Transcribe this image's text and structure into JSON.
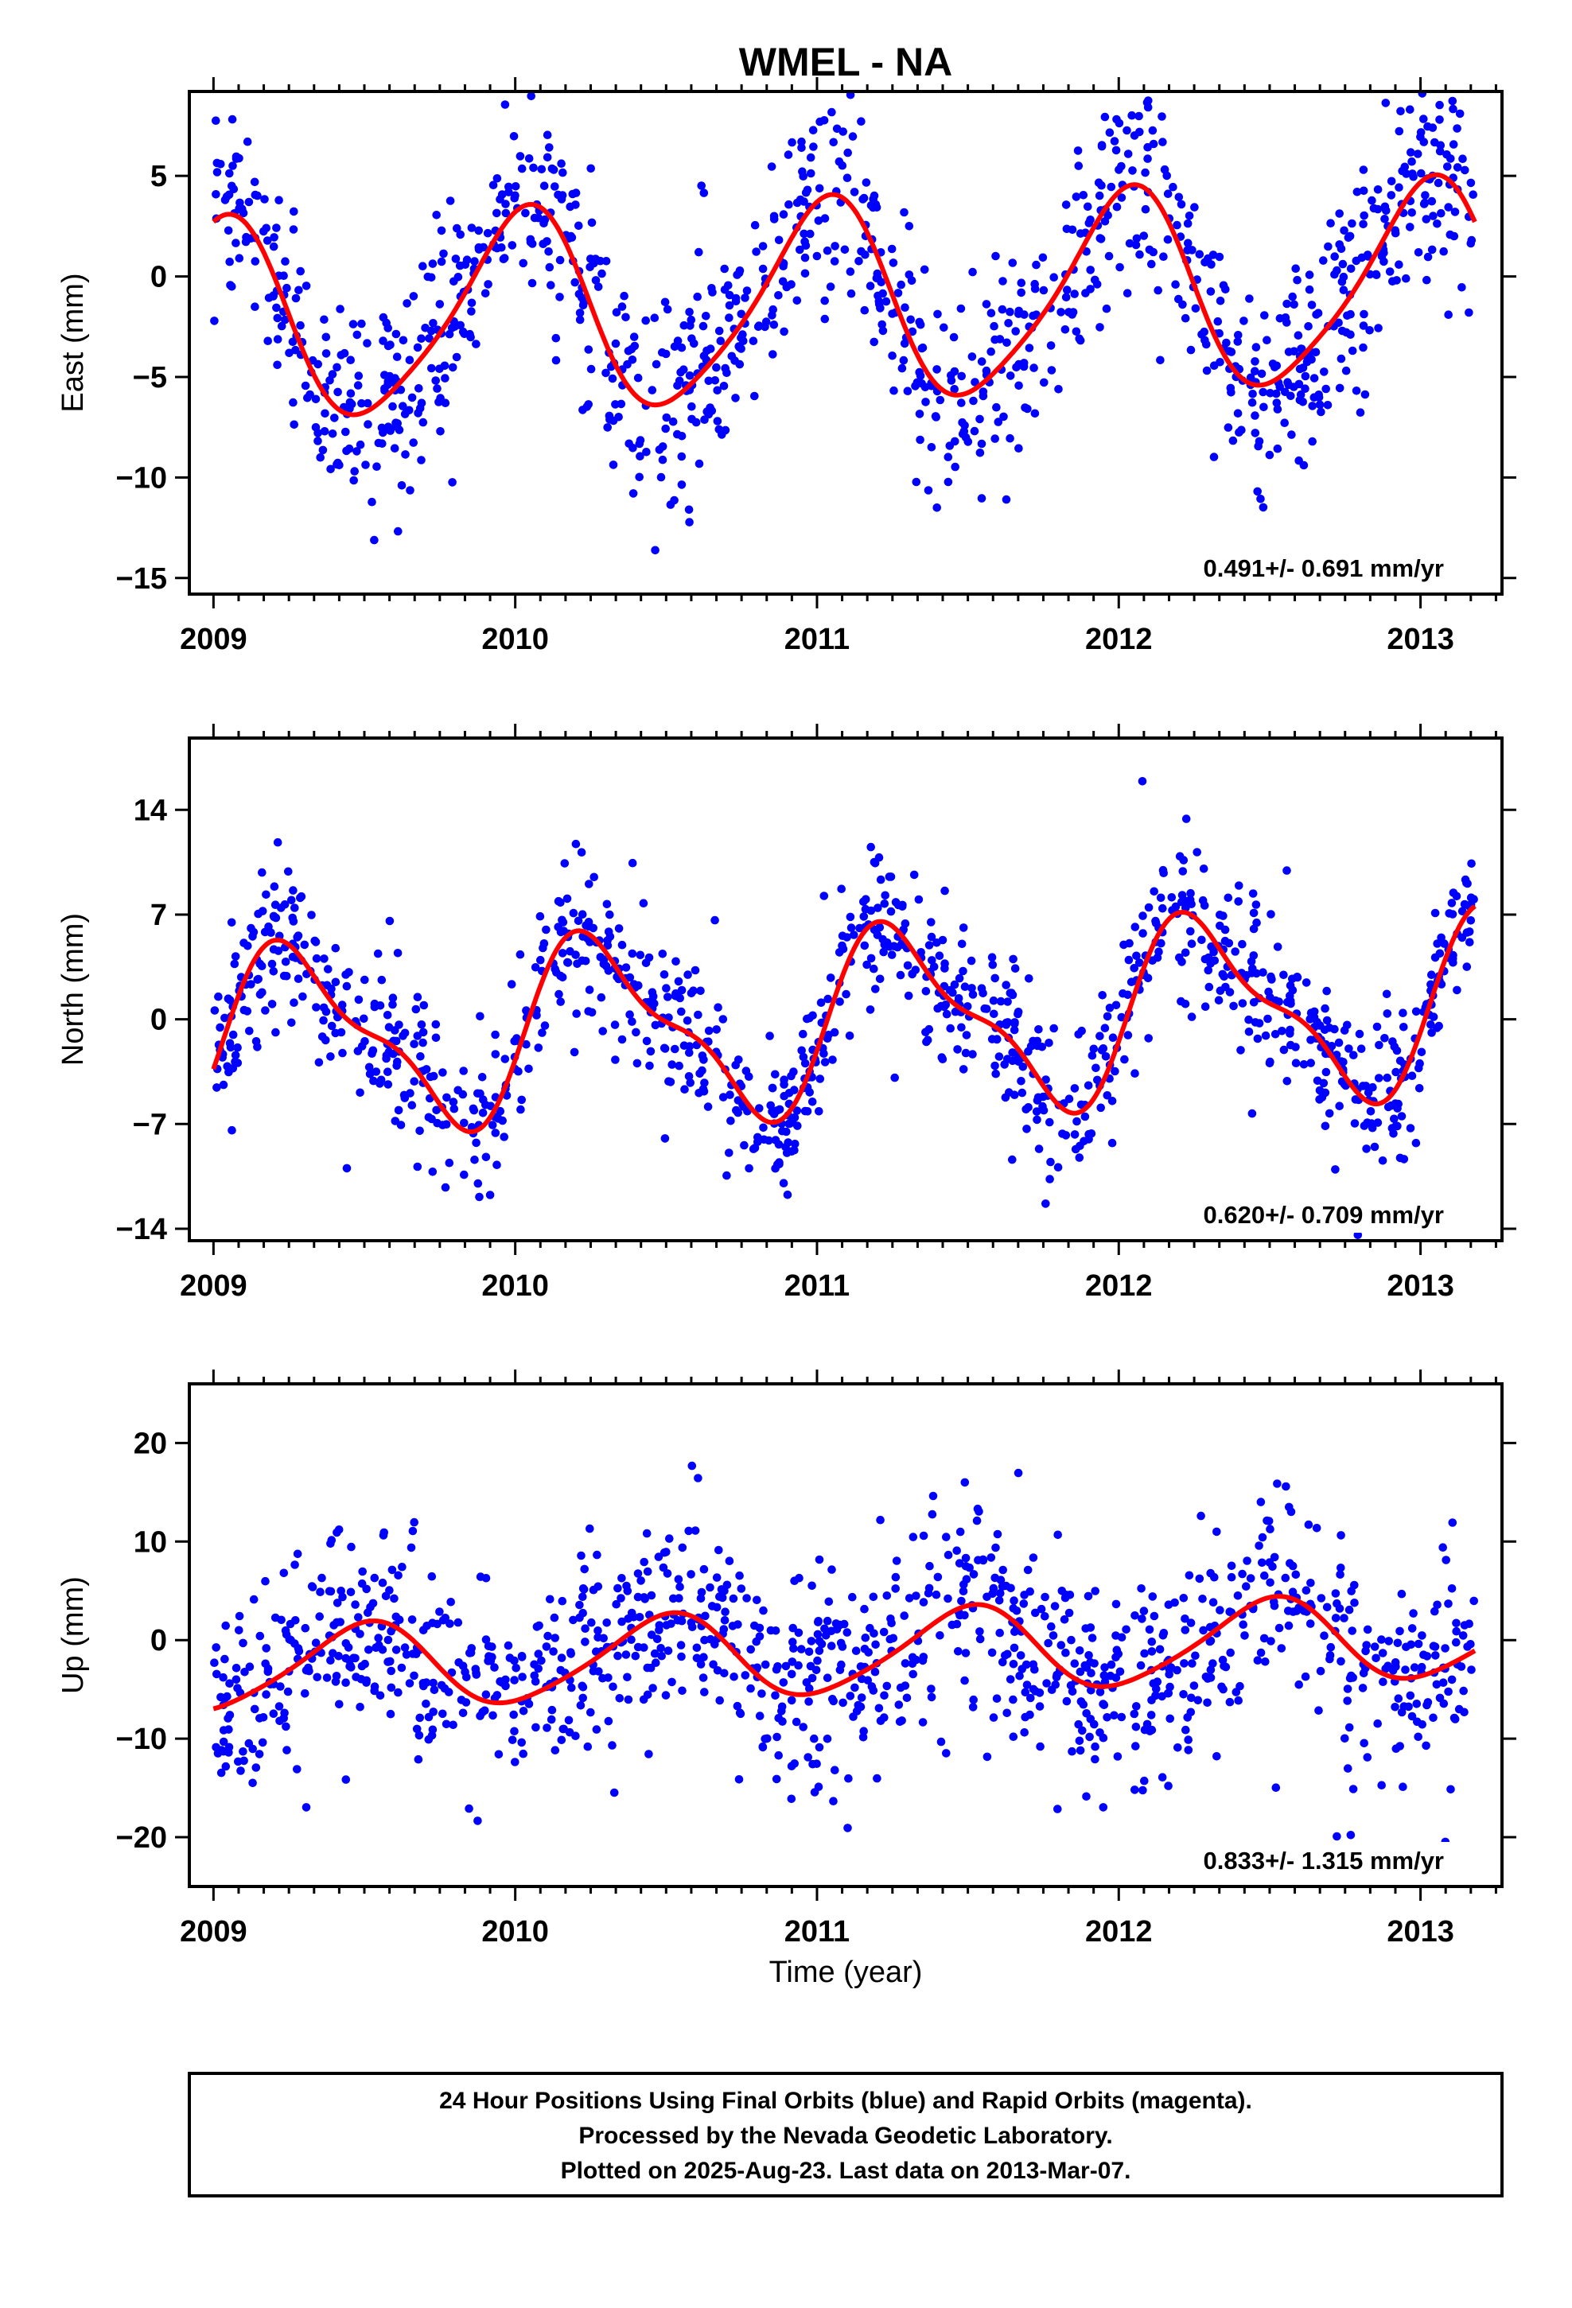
{
  "title": "WMEL - NA",
  "xlabel": "Time (year)",
  "x_tick_labels": [
    "2009",
    "2010",
    "2011",
    "2012",
    "2013"
  ],
  "colors": {
    "final_orbits": "#0000ff",
    "model_fit": "#ff0000",
    "axes": "#000000"
  },
  "chart_data": [
    {
      "type": "scatter",
      "panel": "east",
      "ylabel": "East (mm)",
      "xlim": [
        2008.92,
        2013.27
      ],
      "ylim": [
        -15.8,
        9.2
      ],
      "yticks": [
        5,
        0,
        -5,
        -10,
        -15
      ],
      "ytick_labels": [
        "5",
        "0",
        "−5",
        "−10",
        "−15"
      ],
      "rate_label": "0.491+/- 0.691 mm/yr",
      "series": [
        {
          "kind": "points",
          "start": 2009.0,
          "end": 2013.18,
          "count": 1150,
          "amp": 5.0,
          "phase": 1.45,
          "amp2": 0.8,
          "phase2": 0.3,
          "trend": 0.49,
          "offset": -1.4,
          "noise": 2.6,
          "seed": 11
        },
        {
          "kind": "fit",
          "start": 2009.0,
          "end": 2013.18,
          "amp": 4.9,
          "phase": 1.45,
          "amp2": 0.8,
          "phase2": 0.3,
          "trend": 0.49,
          "offset": -1.4
        }
      ]
    },
    {
      "type": "scatter",
      "panel": "north",
      "ylabel": "North (mm)",
      "xlim": [
        2008.92,
        2013.27
      ],
      "ylim": [
        -14.8,
        18.8
      ],
      "yticks": [
        14,
        7,
        0,
        -7,
        -14
      ],
      "ytick_labels": [
        "14",
        "7",
        "0",
        "−7",
        "−14"
      ],
      "rate_label": "0.620+/- 0.709 mm/yr",
      "series": [
        {
          "kind": "points",
          "start": 2009.0,
          "end": 2013.18,
          "count": 1150,
          "amp": 5.6,
          "phase": -0.2,
          "amp2": 2.0,
          "phase2": -0.4,
          "trend": 0.62,
          "offset": -0.2,
          "noise": 2.4,
          "seed": 23
        },
        {
          "kind": "fit",
          "start": 2009.0,
          "end": 2013.18,
          "amp": 5.6,
          "phase": -0.2,
          "amp2": 2.0,
          "phase2": -0.4,
          "trend": 0.62,
          "offset": -0.2
        }
      ]
    },
    {
      "type": "scatter",
      "panel": "up",
      "ylabel": "Up (mm)",
      "xlim": [
        2008.92,
        2013.27
      ],
      "ylim": [
        -25,
        26
      ],
      "yticks": [
        20,
        10,
        0,
        -10,
        -20
      ],
      "ytick_labels": [
        "20",
        "10",
        "0",
        "−10",
        "−20"
      ],
      "rate_label": "0.833+/- 1.315 mm/yr",
      "series": [
        {
          "kind": "points",
          "start": 2009.0,
          "end": 2013.18,
          "count": 1150,
          "amp": 4.2,
          "phase": -1.55,
          "amp2": 0.6,
          "phase2": 0.5,
          "trend": 0.83,
          "offset": -1.4,
          "noise": 5.2,
          "seed": 37
        },
        {
          "kind": "fit",
          "start": 2009.0,
          "end": 2013.18,
          "amp": 4.2,
          "phase": -1.55,
          "amp2": 0.6,
          "phase2": 0.5,
          "trend": 0.83,
          "offset": -1.4
        }
      ]
    }
  ],
  "footer": {
    "line1": "24 Hour Positions Using Final Orbits (blue) and Rapid Orbits (magenta).",
    "line2": "Processed by the Nevada Geodetic Laboratory.",
    "line3": "Plotted on 2025-Aug-23. Last data on 2013-Mar-07."
  }
}
